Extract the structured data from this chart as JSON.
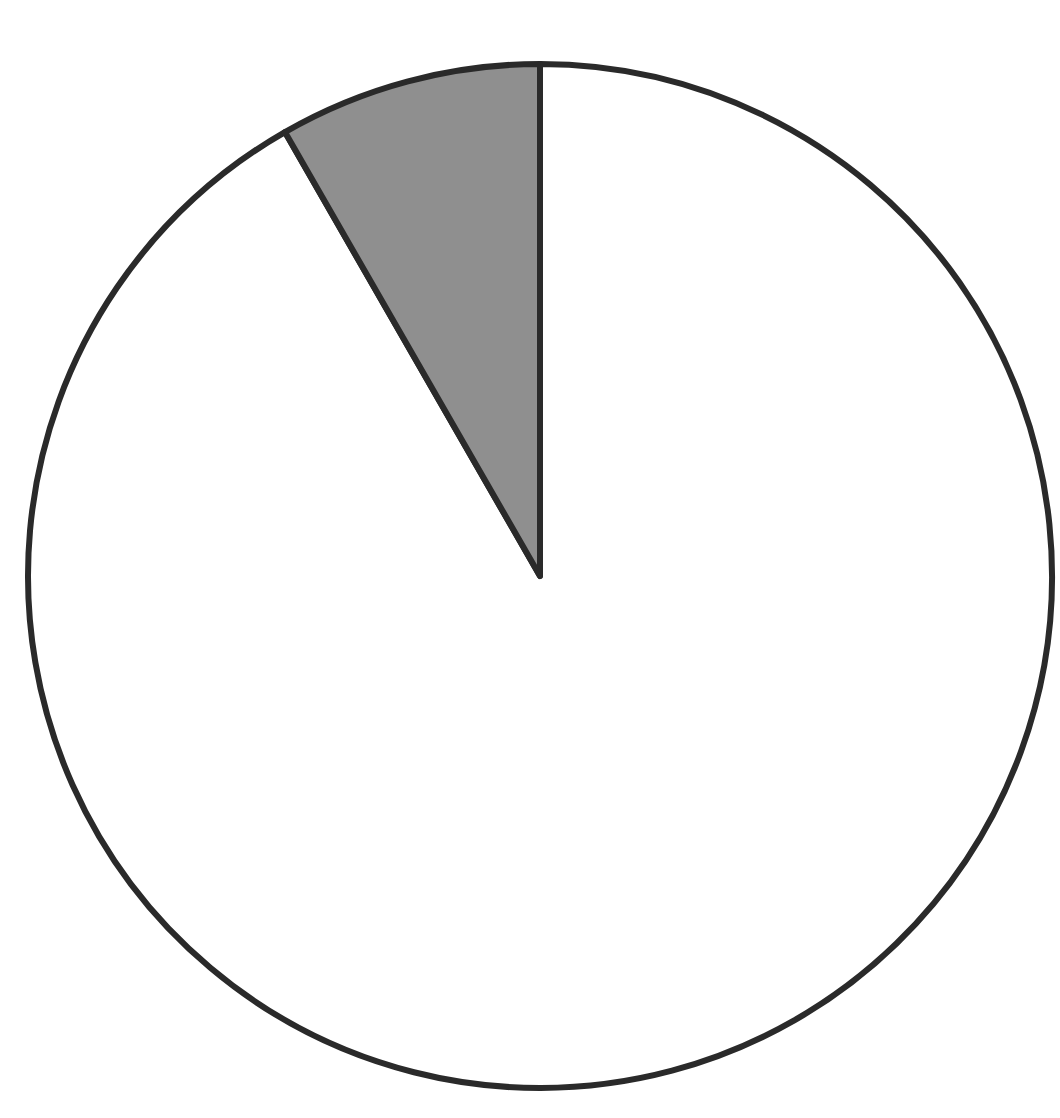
{
  "chart_data": {
    "type": "pie",
    "categories": [
      null,
      null
    ],
    "values": [
      91.7,
      8.3
    ],
    "colors": [
      "#ffffff",
      "#8f8f8f"
    ]
  }
}
